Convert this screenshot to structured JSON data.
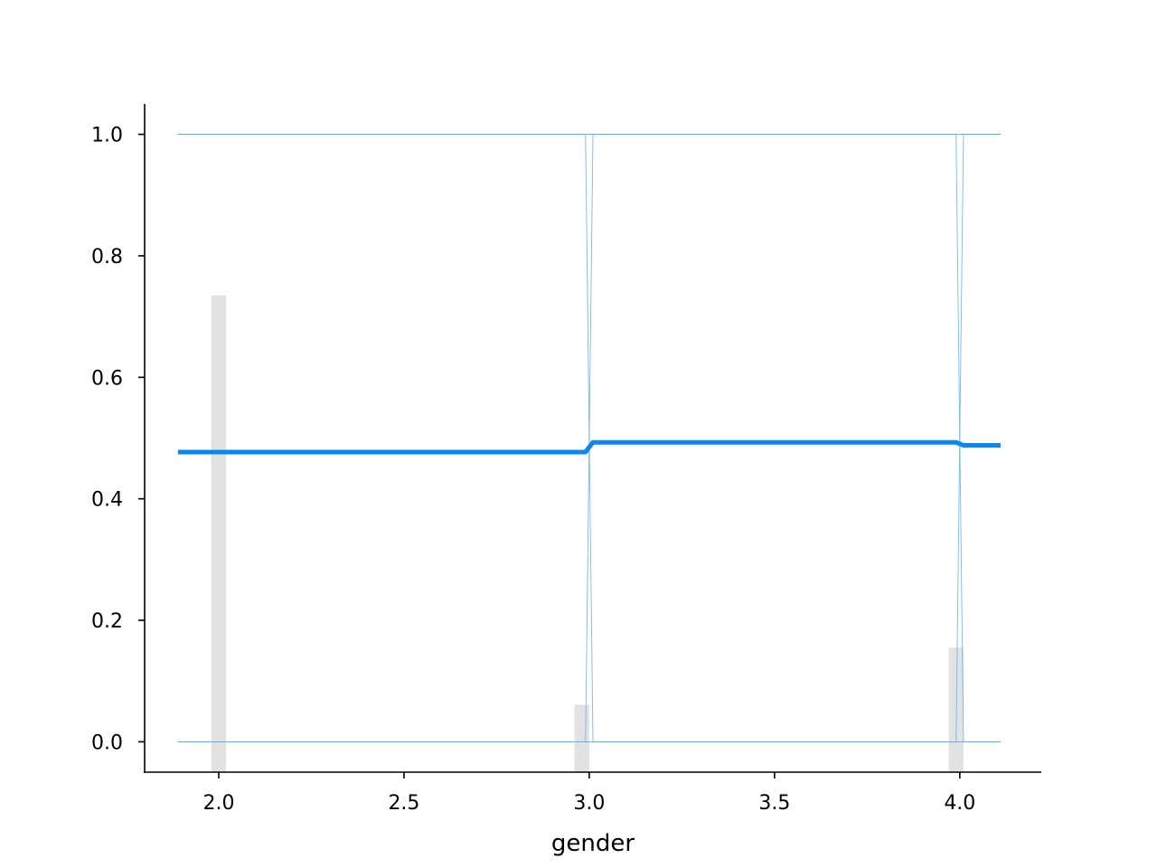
{
  "chart_data": {
    "type": "line",
    "title": "",
    "xlabel": "gender",
    "ylabel": "",
    "xlim": [
      1.8,
      4.22
    ],
    "ylim": [
      -0.05,
      1.05
    ],
    "xticks": [
      2.0,
      2.5,
      3.0,
      3.5,
      4.0
    ],
    "xtick_labels": [
      "2.0",
      "2.5",
      "3.0",
      "3.5",
      "4.0"
    ],
    "yticks": [
      0.0,
      0.2,
      0.4,
      0.6,
      0.8,
      1.0
    ],
    "ytick_labels": [
      "0.0",
      "0.2",
      "0.4",
      "0.6",
      "0.8",
      "1.0"
    ],
    "grid": false,
    "series": [
      {
        "role": "average",
        "color": "#0a87f2",
        "x": [
          1.89,
          2.99,
          3.01,
          3.99,
          4.01,
          4.11
        ],
        "y": [
          0.477,
          0.477,
          0.493,
          0.493,
          0.488,
          0.488
        ]
      }
    ],
    "ice_lines": {
      "color": "#5aaef2",
      "lines": [
        {
          "x": [
            1.89,
            2.99,
            3.01,
            4.11
          ],
          "y": [
            1.0,
            1.0,
            1.0,
            1.0
          ]
        },
        {
          "x": [
            1.89,
            2.99,
            3.01,
            4.11
          ],
          "y": [
            0.0,
            0.0,
            0.0,
            0.0
          ]
        },
        {
          "x": [
            1.89,
            2.99,
            3.01,
            4.11
          ],
          "y": [
            0.0,
            0.0,
            1.0,
            1.0
          ]
        },
        {
          "x": [
            1.89,
            2.99,
            3.01,
            4.11
          ],
          "y": [
            1.0,
            1.0,
            0.0,
            0.0
          ]
        },
        {
          "x": [
            1.89,
            3.99,
            4.01,
            4.11
          ],
          "y": [
            0.0,
            0.0,
            1.0,
            1.0
          ]
        },
        {
          "x": [
            1.89,
            3.99,
            4.01,
            4.11
          ],
          "y": [
            1.0,
            1.0,
            0.0,
            0.0
          ]
        }
      ]
    },
    "histogram": {
      "color": "#e2e2e2",
      "bins": [
        {
          "x0": 1.98,
          "x1": 2.02,
          "height": 0.735
        },
        {
          "x0": 2.96,
          "x1": 3.0,
          "height": 0.061
        },
        {
          "x0": 3.97,
          "x1": 4.01,
          "height": 0.155
        }
      ]
    }
  }
}
